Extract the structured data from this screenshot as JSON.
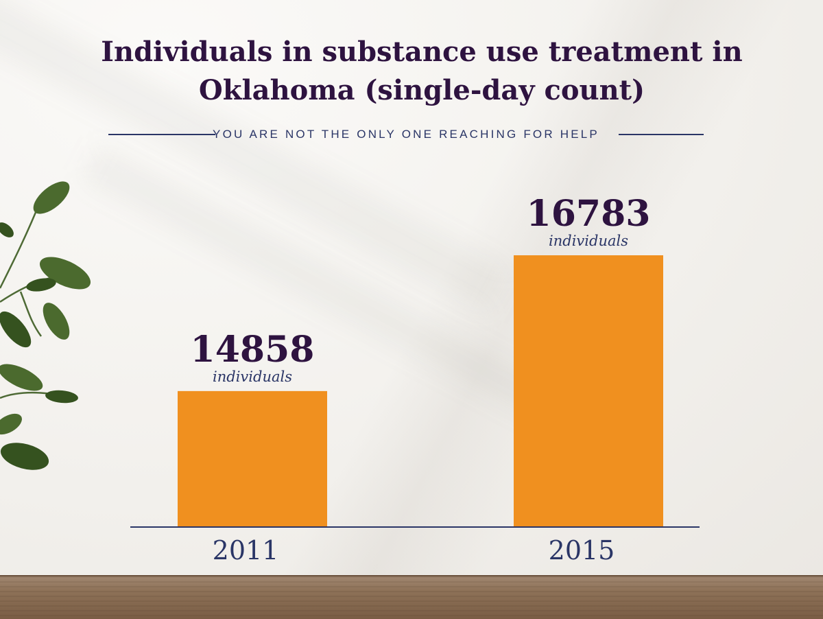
{
  "title": "Individuals in substance use treatment in Oklahoma (single-day count)",
  "subtitle": "YOU ARE NOT THE ONLY ONE REACHING FOR HELP",
  "colors": {
    "title": "#2e1340",
    "accent_navy": "#2a3566",
    "bar": "#f0901f",
    "background": "#f3f1ee"
  },
  "decor": {
    "plant": "plant-leaves-icon",
    "table": "wooden-tabletop"
  },
  "chart_data": {
    "type": "bar",
    "title": "Individuals in substance use treatment in Oklahoma (single-day count)",
    "subtitle": "YOU ARE NOT THE ONLY ONE REACHING FOR HELP",
    "categories": [
      "2011",
      "2015"
    ],
    "values": [
      14858,
      16783
    ],
    "value_unit_label": "individuals",
    "xlabel": "",
    "ylabel": "",
    "ylim": [
      12940,
      16783
    ],
    "grid": false,
    "legend": "none"
  }
}
